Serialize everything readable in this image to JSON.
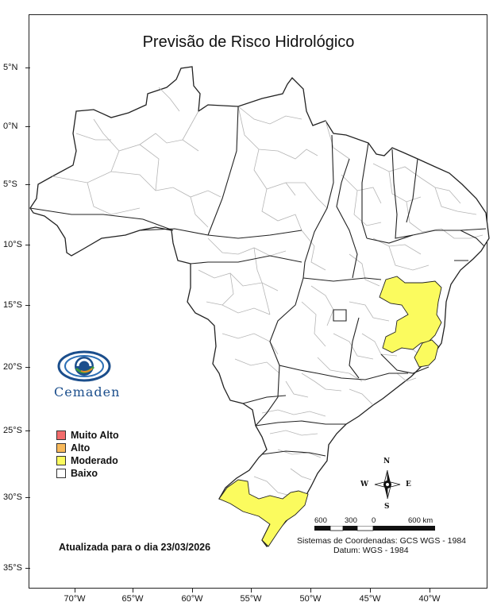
{
  "title": "Previsão de Risco Hidrológico",
  "latitude_labels": [
    "5°N",
    "0°N",
    "5°S",
    "10°S",
    "15°S",
    "20°S",
    "25°S",
    "30°S",
    "35°S"
  ],
  "longitude_labels": [
    "70°W",
    "65°W",
    "60°W",
    "55°W",
    "50°W",
    "45°W",
    "40°W"
  ],
  "logo": {
    "text": "Cemaden",
    "icon": "cemaden-eye-logo-icon",
    "colors": {
      "blue": "#1b4e8c",
      "green": "#3d9a3d",
      "orange": "#e88b2a"
    }
  },
  "legend": [
    {
      "label": "Muito Alto",
      "color": "#f26b6b"
    },
    {
      "label": "Alto",
      "color": "#f8b95a"
    },
    {
      "label": "Moderado",
      "color": "#fbfb5e"
    },
    {
      "label": "Baixo",
      "color": "#ffffff"
    }
  ],
  "updated_text": "Atualizada para o dia 23/03/2026",
  "scale_bar": {
    "labels": [
      "600",
      "300",
      "0",
      "600 km"
    ]
  },
  "compass": {
    "n": "N",
    "s": "S",
    "e": "E",
    "w": "W",
    "icon": "compass-rose-icon"
  },
  "coordinate_system": "Sistemas de Coordenadas: GCS WGS - 1984",
  "datum": "Datum: WGS - 1984",
  "moderate_color": "#fbfb5e",
  "border_color": "#222222",
  "municipal_line_color": "#b5b5b5"
}
